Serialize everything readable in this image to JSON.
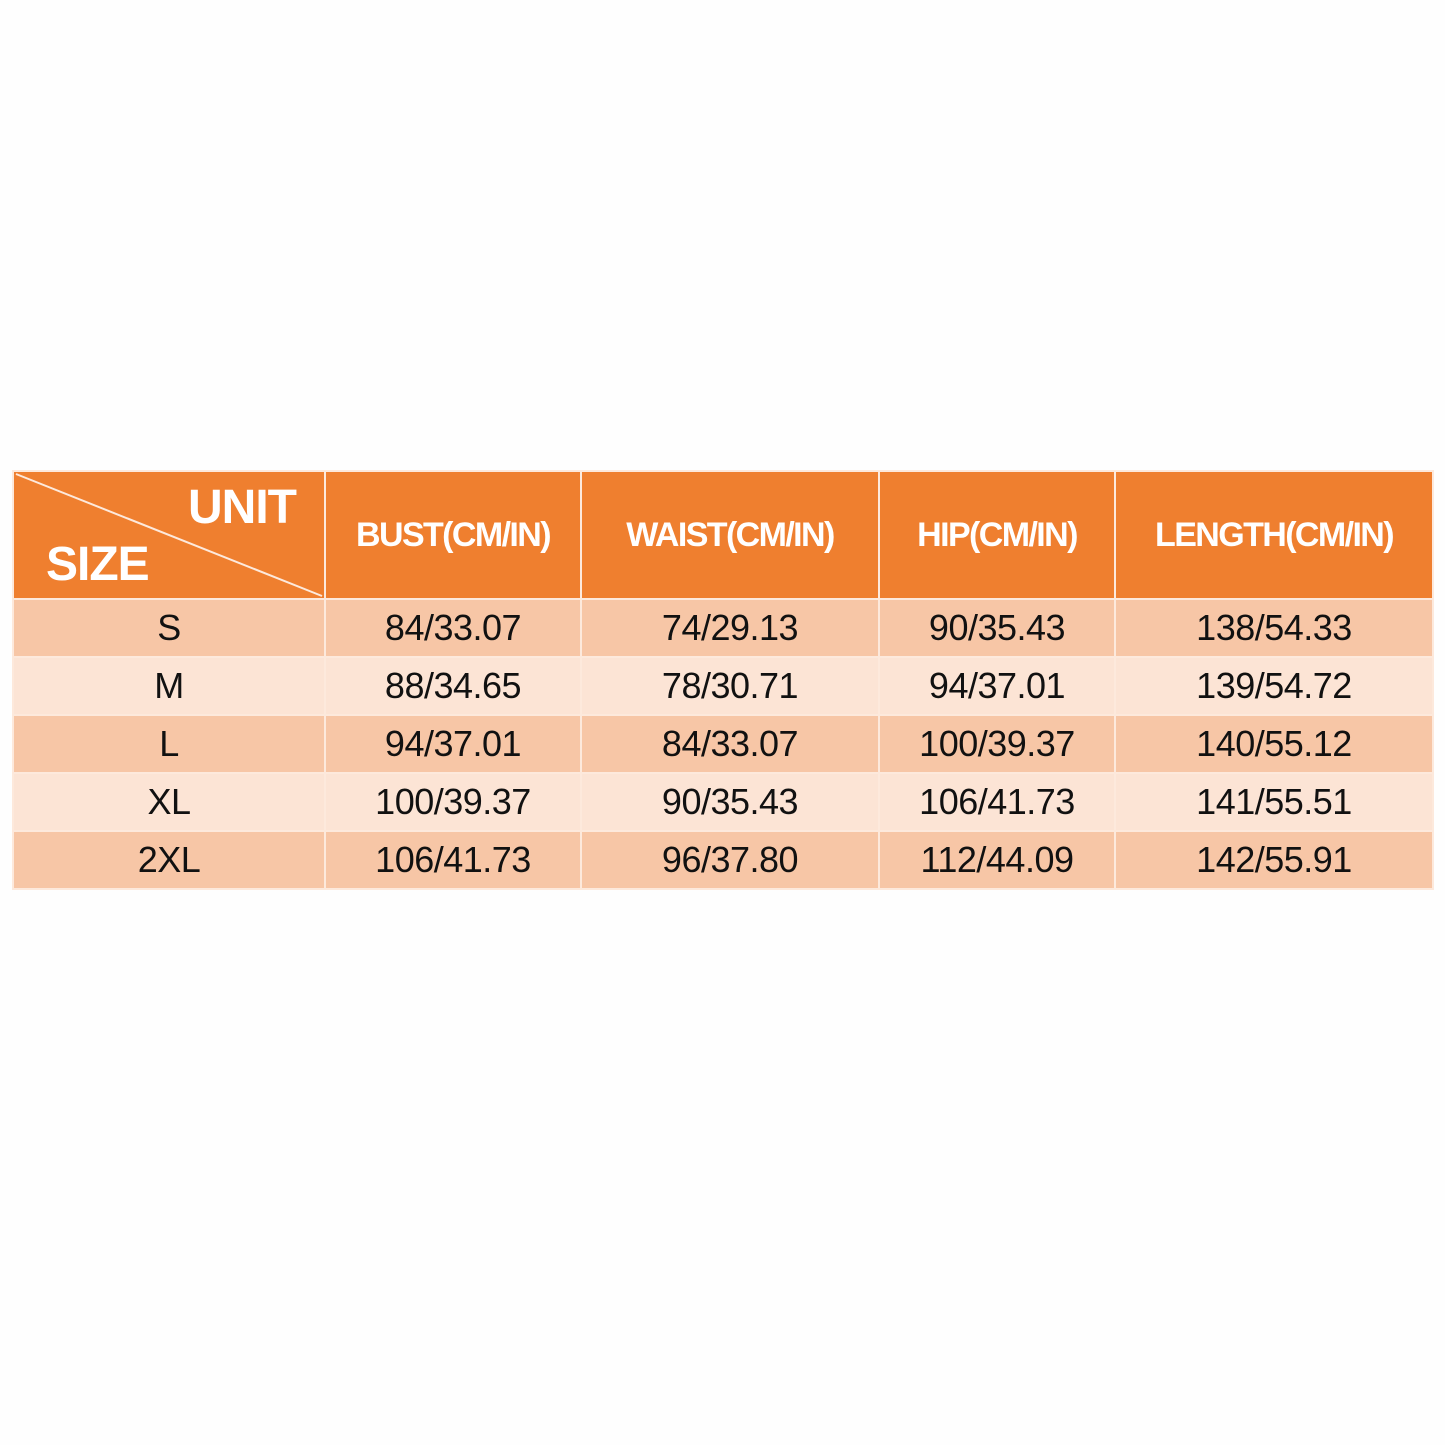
{
  "table": {
    "corner": {
      "unit_label": "UNIT",
      "size_label": "SIZE"
    },
    "headers": [
      "BUST(CM/IN)",
      "WAIST(CM/IN)",
      "HIP(CM/IN)",
      "LENGTH(CM/IN)"
    ],
    "rows": [
      {
        "size": "S",
        "values": [
          "84/33.07",
          "74/29.13",
          "90/35.43",
          "138/54.33"
        ]
      },
      {
        "size": "M",
        "values": [
          "88/34.65",
          "78/30.71",
          "94/37.01",
          "139/54.72"
        ]
      },
      {
        "size": "L",
        "values": [
          "94/37.01",
          "84/33.07",
          "100/39.37",
          "140/55.12"
        ]
      },
      {
        "size": "XL",
        "values": [
          "100/39.37",
          "90/35.43",
          "106/41.73",
          "141/55.51"
        ]
      },
      {
        "size": "2XL",
        "values": [
          "106/41.73",
          "96/37.80",
          "112/44.09",
          "142/55.91"
        ]
      }
    ]
  },
  "colors": {
    "header": "#ef7f2f",
    "row_dark": "#f7c6a6",
    "row_light": "#fce4d5",
    "text": "#111111"
  }
}
